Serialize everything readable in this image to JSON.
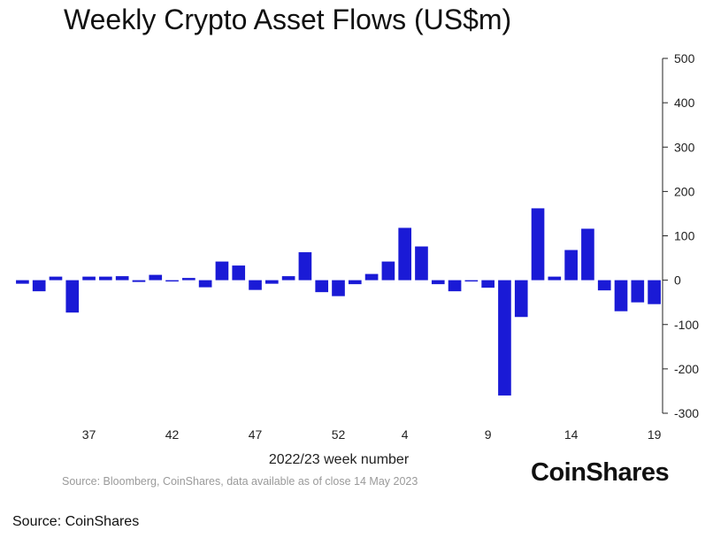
{
  "chart_data": {
    "type": "bar",
    "title": "Weekly Crypto Asset Flows (US$m)",
    "xlabel": "2022/23 week number",
    "ylabel": "",
    "ylim": [
      -300,
      500
    ],
    "y_ticks": [
      500,
      400,
      300,
      200,
      100,
      0,
      -100,
      -200,
      -300
    ],
    "y_tick_labels": [
      "500",
      "400",
      "300",
      "200",
      "100",
      "0",
      "-100",
      "-200",
      "-300"
    ],
    "y_axis_position": "right",
    "grid": false,
    "legend": "none",
    "bar_color": "#1a1ad6",
    "categories": [
      "33",
      "34",
      "35",
      "36",
      "37",
      "38",
      "39",
      "40",
      "41",
      "42",
      "43",
      "44",
      "45",
      "46",
      "47",
      "48",
      "49",
      "50",
      "51",
      "52",
      "1",
      "2",
      "3",
      "4",
      "5",
      "6",
      "7",
      "8",
      "9",
      "10",
      "11",
      "12",
      "13",
      "14",
      "15",
      "16",
      "17",
      "18",
      "19"
    ],
    "x_tick_labels": [
      {
        "category": "37",
        "label": "37"
      },
      {
        "category": "42",
        "label": "42"
      },
      {
        "category": "47",
        "label": "47"
      },
      {
        "category": "52",
        "label": "52"
      },
      {
        "category": "4",
        "label": "4"
      },
      {
        "category": "9",
        "label": "9"
      },
      {
        "category": "14",
        "label": "14"
      },
      {
        "category": "19",
        "label": "19"
      }
    ],
    "values": [
      -8,
      -25,
      8,
      -73,
      8,
      8,
      9,
      -4,
      12,
      -3,
      5,
      -16,
      42,
      33,
      -22,
      -8,
      9,
      63,
      -27,
      -36,
      -9,
      14,
      42,
      118,
      76,
      -9,
      -25,
      -3,
      -17,
      -260,
      -83,
      162,
      8,
      68,
      116,
      -23,
      -70,
      -50,
      -54
    ],
    "source_note": "Source: Bloomberg, CoinShares, data available as of close 14 May 2023"
  },
  "brand": {
    "name": "CoinShares"
  },
  "footer": {
    "source": "Source: CoinShares"
  }
}
